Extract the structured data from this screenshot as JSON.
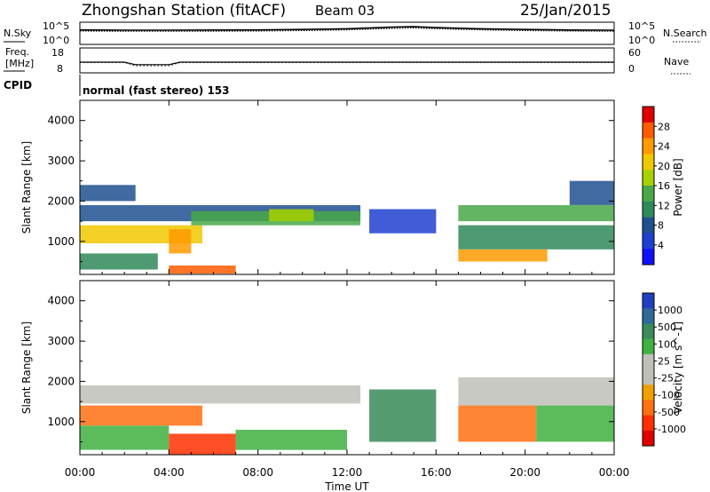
{
  "header": {
    "station": "Zhongshan Station (fitACF)",
    "beam": "Beam 03",
    "date": "25/Jan/2015"
  },
  "noise_panel": {
    "left_label": "N.Sky",
    "right_label": "N.Search",
    "left_ticks": [
      "10^5",
      "10^0"
    ],
    "right_ticks": [
      "10^5",
      "10^0"
    ]
  },
  "freq_panel": {
    "left_label_line1": "Freq.",
    "left_label_line2": "[MHz]",
    "left_ticks": [
      "18",
      "8"
    ],
    "right_label": "Nave",
    "right_ticks": [
      "60",
      "0"
    ]
  },
  "cpid_panel": {
    "label": "CPID",
    "mode_text": "normal (fast stereo) 153"
  },
  "power_panel": {
    "ylabel": "Slant Range [km]",
    "colorbar_label": "Power [dB]",
    "colorbar_ticks": [
      "28",
      "24",
      "20",
      "16",
      "12",
      "8",
      "4"
    ],
    "colorbar_colors": [
      "#e00000",
      "#ff5a00",
      "#ff9a00",
      "#f0c800",
      "#a8d000",
      "#48a848",
      "#2f8a5a",
      "#205090",
      "#1f3fd0",
      "#1010ff"
    ]
  },
  "velocity_panel": {
    "ylabel": "Slant Range [km]",
    "colorbar_label": "Velocity [m s^-1]",
    "colorbar_ticks": [
      "1000",
      "500",
      "100",
      "25",
      "-25",
      "-100",
      "-500",
      "-1000"
    ],
    "colorbar_colors": [
      "#2040c0",
      "#2f6a9a",
      "#3a8a5a",
      "#40b040",
      "#c0c0b8",
      "#c0c0b8",
      "#f0a000",
      "#ff7010",
      "#ff3000",
      "#e00000"
    ]
  },
  "xaxis": {
    "label": "Time UT",
    "ticks": [
      "00:00",
      "04:00",
      "08:00",
      "12:00",
      "16:00",
      "20:00",
      "00:00"
    ]
  },
  "yaxis": {
    "ticks": [
      "4000",
      "3000",
      "2000",
      "1000"
    ]
  },
  "chart_data": [
    {
      "type": "line",
      "title": "N.Sky / N.Search",
      "x": [
        0,
        2,
        4,
        6,
        8,
        10,
        12,
        14,
        15,
        16,
        18,
        20,
        22,
        24
      ],
      "series": [
        {
          "name": "N.Sky",
          "values": [
            3000,
            2500,
            2500,
            2800,
            3000,
            4000,
            6000,
            15000,
            20000,
            12000,
            6000,
            4000,
            2800,
            2500
          ]
        },
        {
          "name": "N.Search",
          "values": [
            1500,
            1300,
            1300,
            1400,
            1500,
            2000,
            3000,
            7000,
            9000,
            6000,
            3000,
            2000,
            1500,
            1300
          ]
        }
      ],
      "ylim": [
        1,
        100000
      ],
      "yscale": "log"
    },
    {
      "type": "line",
      "title": "Freq / Nave",
      "x": [
        0,
        2,
        2.5,
        4,
        4.5,
        24
      ],
      "series": [
        {
          "name": "Freq",
          "values": [
            12,
            12,
            10.5,
            10.5,
            12,
            12
          ]
        },
        {
          "name": "Nave",
          "values": [
            25,
            25,
            18,
            18,
            25,
            25
          ]
        }
      ]
    },
    {
      "type": "heatmap",
      "title": "Power",
      "x_range_hours": [
        0,
        24
      ],
      "y_range_km": [
        180,
        4500
      ],
      "zlim_db": [
        0,
        30
      ],
      "regions": [
        {
          "t0": 0.0,
          "t1": 12.6,
          "r0": 1500,
          "r1": 1900,
          "level": 8
        },
        {
          "t0": 0.0,
          "t1": 5.5,
          "r0": 950,
          "r1": 1400,
          "level": 20
        },
        {
          "t0": 0.0,
          "t1": 2.5,
          "r0": 2000,
          "r1": 2400,
          "level": 7
        },
        {
          "t0": 5.0,
          "t1": 12.6,
          "r0": 1400,
          "r1": 1750,
          "level": 14
        },
        {
          "t0": 8.5,
          "t1": 10.5,
          "r0": 1500,
          "r1": 1800,
          "level": 16
        },
        {
          "t0": 4.0,
          "t1": 7.0,
          "r0": 200,
          "r1": 400,
          "level": 26
        },
        {
          "t0": 0.0,
          "t1": 3.5,
          "r0": 300,
          "r1": 700,
          "level": 12
        },
        {
          "t0": 4.0,
          "t1": 5.0,
          "r0": 700,
          "r1": 1300,
          "level": 24
        },
        {
          "t0": 13.0,
          "t1": 16.0,
          "r0": 1200,
          "r1": 1800,
          "level": 6
        },
        {
          "t0": 17.0,
          "t1": 24.0,
          "r0": 1500,
          "r1": 1900,
          "level": 14
        },
        {
          "t0": 17.0,
          "t1": 24.0,
          "r0": 800,
          "r1": 1400,
          "level": 12
        },
        {
          "t0": 17.0,
          "t1": 21.0,
          "r0": 500,
          "r1": 800,
          "level": 22
        },
        {
          "t0": 22.0,
          "t1": 24.0,
          "r0": 1900,
          "r1": 2500,
          "level": 8
        }
      ]
    },
    {
      "type": "heatmap",
      "title": "Velocity",
      "x_range_hours": [
        0,
        24
      ],
      "y_range_km": [
        180,
        4500
      ],
      "zlim_ms": [
        -1000,
        1000
      ],
      "regions": [
        {
          "t0": 0.0,
          "t1": 12.6,
          "r0": 1450,
          "r1": 1900,
          "level": 0
        },
        {
          "t0": 0.0,
          "t1": 5.5,
          "r0": 900,
          "r1": 1400,
          "level": -150
        },
        {
          "t0": 0.0,
          "t1": 4.0,
          "r0": 300,
          "r1": 900,
          "level": 150
        },
        {
          "t0": 4.0,
          "t1": 7.0,
          "r0": 180,
          "r1": 700,
          "level": -400
        },
        {
          "t0": 7.0,
          "t1": 12.0,
          "r0": 300,
          "r1": 800,
          "level": 150
        },
        {
          "t0": 13.0,
          "t1": 16.0,
          "r0": 500,
          "r1": 1800,
          "level": 300
        },
        {
          "t0": 17.0,
          "t1": 24.0,
          "r0": 1400,
          "r1": 2100,
          "level": 0
        },
        {
          "t0": 17.0,
          "t1": 20.5,
          "r0": 500,
          "r1": 1400,
          "level": -150
        },
        {
          "t0": 20.5,
          "t1": 24.0,
          "r0": 500,
          "r1": 1400,
          "level": 150
        }
      ]
    }
  ]
}
